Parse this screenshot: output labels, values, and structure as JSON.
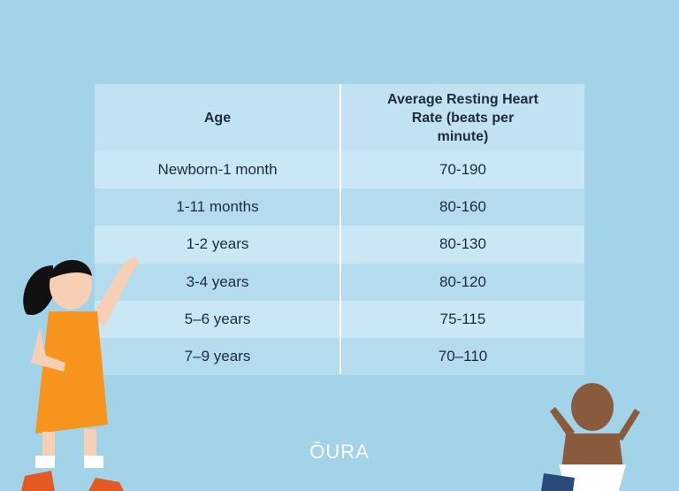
{
  "table": {
    "header": [
      "Age",
      "Average Resting Heart Rate (beats per minute)"
    ],
    "rows": [
      [
        "Newborn-1 month",
        "70-190"
      ],
      [
        "1-11 months",
        "80-160"
      ],
      [
        "1-2 years",
        "80-130"
      ],
      [
        "3-4 years",
        "80-120"
      ],
      [
        "5–6 years",
        "75-115"
      ],
      [
        "7–9 years",
        "70–110"
      ]
    ]
  },
  "logo": "ŌURA"
}
